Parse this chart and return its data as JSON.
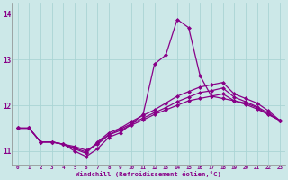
{
  "xlabel": "Windchill (Refroidissement éolien,°C)",
  "ylabel": "",
  "background_color": "#cce8e8",
  "grid_color": "#aad4d4",
  "line_color": "#880088",
  "xlim": [
    -0.5,
    23.5
  ],
  "ylim": [
    10.7,
    14.25
  ],
  "yticks": [
    11,
    12,
    13,
    14
  ],
  "xticks": [
    0,
    1,
    2,
    3,
    4,
    5,
    6,
    7,
    8,
    9,
    10,
    11,
    12,
    13,
    14,
    15,
    16,
    17,
    18,
    19,
    20,
    21,
    22,
    23
  ],
  "series": [
    [
      11.5,
      11.5,
      11.2,
      11.2,
      11.15,
      11.0,
      10.88,
      11.05,
      11.3,
      11.4,
      11.6,
      11.8,
      12.9,
      13.1,
      13.88,
      13.7,
      12.65,
      12.2,
      12.15,
      12.1,
      12.05,
      11.95,
      11.8,
      11.67
    ],
    [
      11.5,
      11.5,
      11.2,
      11.2,
      11.15,
      11.05,
      10.95,
      11.2,
      11.4,
      11.5,
      11.65,
      11.78,
      11.9,
      12.05,
      12.2,
      12.3,
      12.4,
      12.45,
      12.5,
      12.25,
      12.15,
      12.05,
      11.88,
      11.67
    ],
    [
      11.5,
      11.5,
      11.2,
      11.2,
      11.15,
      11.1,
      11.02,
      11.15,
      11.35,
      11.45,
      11.57,
      11.68,
      11.8,
      11.9,
      12.0,
      12.1,
      12.15,
      12.2,
      12.25,
      12.1,
      12.02,
      11.92,
      11.8,
      11.67
    ],
    [
      11.5,
      11.5,
      11.2,
      11.2,
      11.15,
      11.07,
      10.98,
      11.18,
      11.36,
      11.48,
      11.6,
      11.72,
      11.84,
      11.95,
      12.08,
      12.18,
      12.28,
      12.32,
      12.38,
      12.18,
      12.08,
      11.97,
      11.83,
      11.67
    ]
  ]
}
